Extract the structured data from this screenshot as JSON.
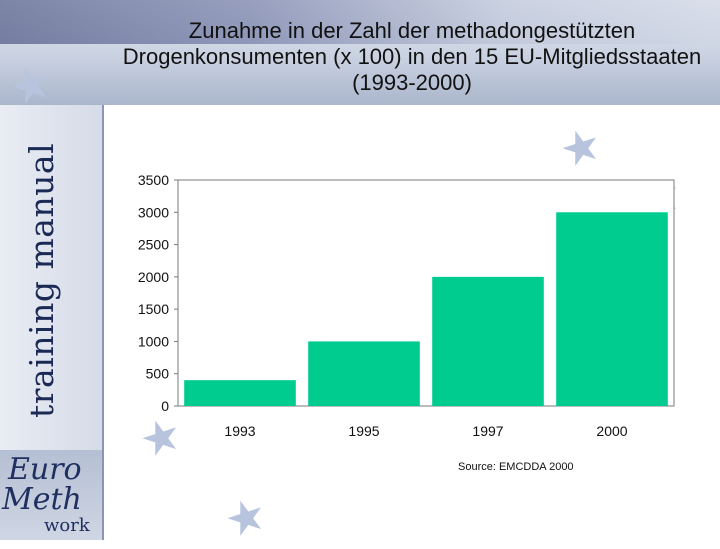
{
  "title": "Zunahme in der Zahl der methadongestützten Drogenkonsumenten (x 100) in den 15 EU-Mitgliedsstaaten (1993-2000)",
  "sidebar_label": "training manual",
  "logo": {
    "line1": "Euro",
    "line2": "Meth",
    "line3": "work"
  },
  "source": "Source: EMCDDA 2000",
  "colors": {
    "bar": "#00cc90",
    "frame": "#7a7a7a",
    "sidebar_text": "#1b2a55"
  },
  "chart_data": {
    "type": "bar",
    "categories": [
      "1993",
      "1995",
      "1997",
      "2000"
    ],
    "values": [
      400,
      1000,
      2000,
      3000
    ],
    "ylim": [
      0,
      3500
    ],
    "yticks": [
      0,
      500,
      1000,
      1500,
      2000,
      2500,
      3000,
      3500
    ],
    "grid": false,
    "legend": "none",
    "xlabel": "",
    "ylabel": ""
  }
}
